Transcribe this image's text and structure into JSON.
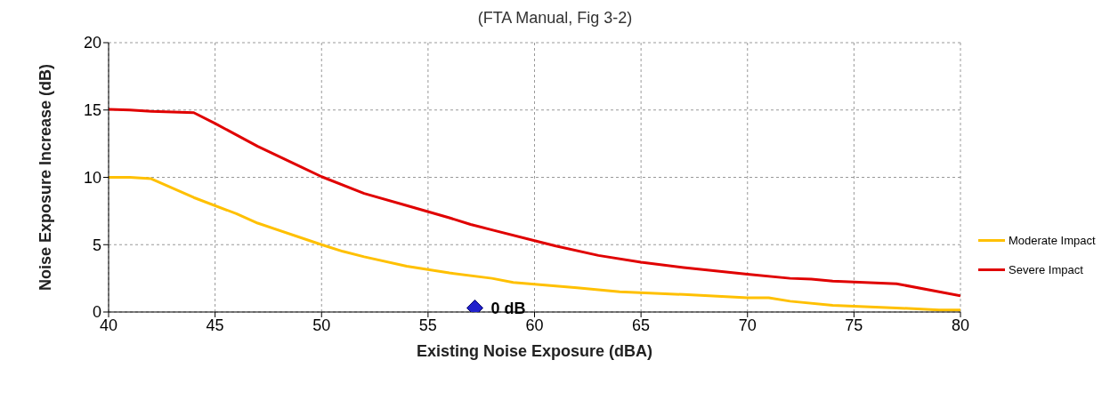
{
  "chart_data": {
    "type": "line",
    "title": "(FTA Manual, Fig 3-2)",
    "xlabel": "Existing Noise Exposure (dBA)",
    "ylabel": "Noise Exposure Increase (dB)",
    "xlim": [
      40,
      80
    ],
    "xticks": [
      40,
      45,
      50,
      55,
      60,
      65,
      70,
      75,
      80
    ],
    "ylim": [
      0,
      20
    ],
    "yticks": [
      0,
      5,
      10,
      15,
      20
    ],
    "grid": true,
    "legend": "right",
    "marker": "none",
    "line_style": "solid",
    "series": [
      {
        "name": "Moderate Impact",
        "color": "#ffc000",
        "x": [
          40,
          41,
          42,
          44,
          46,
          47,
          50,
          51,
          52,
          54,
          56,
          58,
          59,
          62,
          64,
          67,
          70,
          71,
          72,
          74,
          77,
          79,
          80
        ],
        "values": [
          10.0,
          10.0,
          9.9,
          8.5,
          7.3,
          6.6,
          5.0,
          4.5,
          4.1,
          3.4,
          2.9,
          2.5,
          2.2,
          1.8,
          1.5,
          1.3,
          1.05,
          1.05,
          0.8,
          0.5,
          0.3,
          0.15,
          0.15
        ]
      },
      {
        "name": "Severe Impact",
        "color": "#e00000",
        "x": [
          40,
          41,
          42,
          44,
          45,
          47,
          49,
          50,
          52,
          54,
          56,
          57,
          58,
          60,
          61,
          63,
          65,
          67,
          70,
          72,
          73,
          74,
          77,
          80
        ],
        "values": [
          15.05,
          15.0,
          14.9,
          14.8,
          14.0,
          12.3,
          10.8,
          10.05,
          8.8,
          7.9,
          7.0,
          6.5,
          6.1,
          5.3,
          4.9,
          4.2,
          3.7,
          3.3,
          2.8,
          2.5,
          2.45,
          2.3,
          2.1,
          1.2
        ]
      },
      {
        "type": "scatter",
        "color": "#2222cc",
        "marker": "diamond",
        "x": [
          57.2
        ],
        "values": [
          0.3
        ]
      }
    ],
    "annotations": [
      {
        "text": "0 dB",
        "x": 57.2,
        "y": 0.3
      }
    ]
  }
}
